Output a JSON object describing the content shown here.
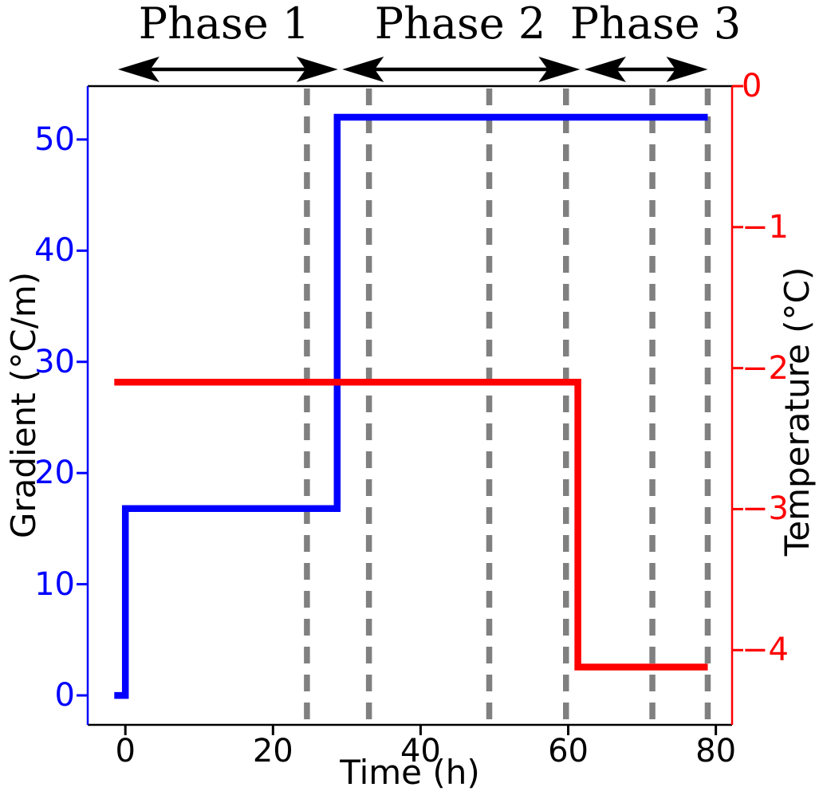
{
  "chart_data": {
    "type": "line",
    "title": "",
    "xlabel": "Time (h)",
    "xlim": [
      -5.1,
      82.2
    ],
    "x_ticks": [
      {
        "v": 0,
        "label": "0"
      },
      {
        "v": 20,
        "label": "20"
      },
      {
        "v": 40,
        "label": "40"
      },
      {
        "v": 60,
        "label": "60"
      },
      {
        "v": 80,
        "label": "80"
      }
    ],
    "left_axis": {
      "label": "Gradient (°C/m)",
      "color": "#0000ff",
      "lim": [
        -2.65,
        54.8
      ],
      "ticks": [
        {
          "v": 0,
          "label": "0"
        },
        {
          "v": 10,
          "label": "10"
        },
        {
          "v": 20,
          "label": "20"
        },
        {
          "v": 30,
          "label": "30"
        },
        {
          "v": 40,
          "label": "40"
        },
        {
          "v": 50,
          "label": "50"
        }
      ]
    },
    "right_axis": {
      "label": "Temperature (°C)",
      "color": "#ff0000",
      "lim": [
        -4.53,
        0
      ],
      "ticks": [
        {
          "v": 0,
          "label": "0"
        },
        {
          "v": -1,
          "label": "−1"
        },
        {
          "v": -2,
          "label": "−2"
        },
        {
          "v": -3,
          "label": "−3"
        },
        {
          "v": -4,
          "label": "−4"
        }
      ]
    },
    "series": [
      {
        "name": "Gradient",
        "axis": "left",
        "color": "#0000ff",
        "points": [
          [
            -1.5,
            0
          ],
          [
            0,
            0
          ],
          [
            0,
            16.8
          ],
          [
            28.7,
            16.8
          ],
          [
            28.7,
            52
          ],
          [
            78.9,
            52
          ]
        ]
      },
      {
        "name": "Temperature",
        "axis": "right",
        "color": "#ff0000",
        "points": [
          [
            -1.5,
            -2.1
          ],
          [
            61.3,
            -2.1
          ],
          [
            61.3,
            -4.12
          ],
          [
            78.9,
            -4.12
          ]
        ]
      }
    ],
    "vlines": {
      "color": "#808080",
      "style": "dashed",
      "x": [
        24.6,
        33.0,
        49.3,
        59.7,
        71.4,
        78.9
      ]
    },
    "phases": [
      {
        "label": "Phase 1",
        "start": -1.0,
        "end": 28.8
      },
      {
        "label": "Phase 2",
        "start": 29.4,
        "end": 61.6
      },
      {
        "label": "Phase 3",
        "start": 62.2,
        "end": 78.9
      }
    ]
  }
}
